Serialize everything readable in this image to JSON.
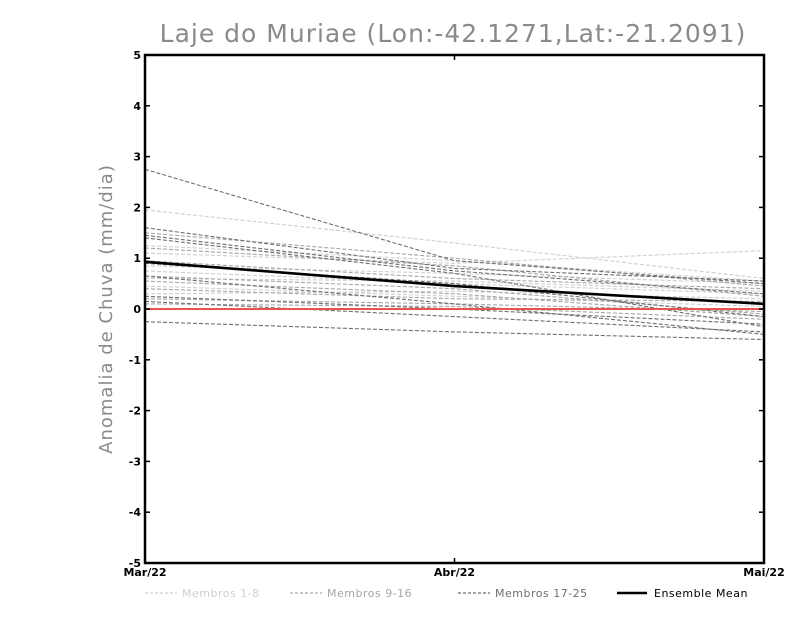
{
  "chart_data": {
    "type": "line",
    "title": "Laje do Muriae (Lon:-42.1271,Lat:-21.2091)",
    "ylabel": "Anomalia de Chuva (mm/dia)",
    "xlabel": "",
    "categories": [
      "Mar/22",
      "Abr/22",
      "Mai/22"
    ],
    "ylim": [
      -5,
      5
    ],
    "yticks": [
      "-5",
      "-4",
      "-3",
      "-2",
      "-1",
      "0",
      "1",
      "2",
      "3",
      "4",
      "5"
    ],
    "zero_line_color": "#e8524f",
    "groups": [
      {
        "name": "Membros 1-8",
        "color": "#cfcfcf",
        "series": [
          [
            1.95,
            1.3,
            0.6
          ],
          [
            1.1,
            0.9,
            1.15
          ],
          [
            0.85,
            0.7,
            0.5
          ],
          [
            0.6,
            0.55,
            0.35
          ],
          [
            0.3,
            0.35,
            0.2
          ],
          [
            1.25,
            0.95,
            0.55
          ],
          [
            0.75,
            0.5,
            0.3
          ],
          [
            0.45,
            0.25,
            0.05
          ]
        ]
      },
      {
        "name": "Membros 9-16",
        "color": "#a6a6a6",
        "series": [
          [
            1.5,
            1.0,
            0.45
          ],
          [
            1.2,
            0.85,
            0.25
          ],
          [
            0.95,
            0.6,
            0.4
          ],
          [
            0.65,
            0.4,
            -0.1
          ],
          [
            0.4,
            0.2,
            0.15
          ],
          [
            0.2,
            0.1,
            -0.05
          ],
          [
            0.1,
            0.05,
            -0.2
          ],
          [
            0.55,
            0.3,
            -0.15
          ]
        ]
      },
      {
        "name": "Membros 17-25",
        "color": "#6e6e6e",
        "series": [
          [
            2.75,
            0.95,
            0.5
          ],
          [
            1.6,
            0.8,
            0.55
          ],
          [
            1.45,
            0.75,
            0.3
          ],
          [
            1.4,
            0.7,
            -0.35
          ],
          [
            0.9,
            0.5,
            -0.15
          ],
          [
            0.65,
            0.1,
            -0.5
          ],
          [
            0.25,
            0.0,
            -0.3
          ],
          [
            0.15,
            -0.15,
            -0.45
          ],
          [
            -0.25,
            -0.45,
            -0.6
          ]
        ]
      }
    ],
    "ensemble_mean": {
      "name": "Ensemble Mean",
      "color": "#000000",
      "values": [
        0.93,
        0.45,
        0.1
      ]
    },
    "legend": {
      "placement": "bottom",
      "items": [
        "Membros 1-8",
        "Membros 9-16",
        "Membros 17-25",
        "Ensemble Mean"
      ]
    }
  }
}
